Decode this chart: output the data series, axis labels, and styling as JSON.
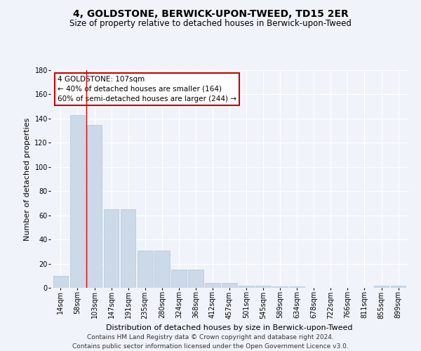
{
  "title": "4, GOLDSTONE, BERWICK-UPON-TWEED, TD15 2ER",
  "subtitle": "Size of property relative to detached houses in Berwick-upon-Tweed",
  "xlabel": "Distribution of detached houses by size in Berwick-upon-Tweed",
  "ylabel": "Number of detached properties",
  "bar_color": "#ccd9e8",
  "bar_edge_color": "#aec6d8",
  "categories": [
    "14sqm",
    "58sqm",
    "103sqm",
    "147sqm",
    "191sqm",
    "235sqm",
    "280sqm",
    "324sqm",
    "368sqm",
    "412sqm",
    "457sqm",
    "501sqm",
    "545sqm",
    "589sqm",
    "634sqm",
    "678sqm",
    "722sqm",
    "766sqm",
    "811sqm",
    "855sqm",
    "899sqm"
  ],
  "values": [
    10,
    143,
    135,
    65,
    65,
    31,
    31,
    15,
    15,
    4,
    4,
    2,
    2,
    1,
    1,
    0,
    0,
    0,
    0,
    2,
    2
  ],
  "ylim": [
    0,
    180
  ],
  "yticks": [
    0,
    20,
    40,
    60,
    80,
    100,
    120,
    140,
    160,
    180
  ],
  "red_line_x": 1.5,
  "annotation_text": "4 GOLDSTONE: 107sqm\n← 40% of detached houses are smaller (164)\n60% of semi-detached houses are larger (244) →",
  "annotation_box_color": "#ffffff",
  "annotation_box_edge_color": "#cc0000",
  "footer_line1": "Contains HM Land Registry data © Crown copyright and database right 2024.",
  "footer_line2": "Contains public sector information licensed under the Open Government Licence v3.0.",
  "bg_color": "#f0f4fa",
  "plot_bg_color": "#f0f4fa",
  "grid_color": "#ffffff",
  "title_fontsize": 10,
  "subtitle_fontsize": 8.5,
  "axis_label_fontsize": 8,
  "tick_fontsize": 7,
  "footer_fontsize": 6.5,
  "annotation_fontsize": 7.5
}
